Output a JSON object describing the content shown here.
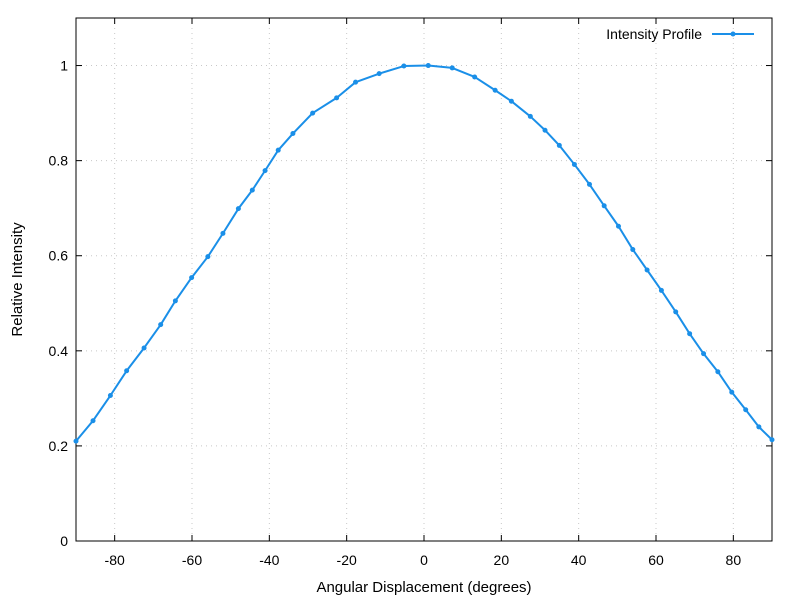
{
  "chart_data": {
    "type": "line",
    "title": "",
    "xlabel": "Angular Displacement (degrees)",
    "ylabel": "Relative Intensity",
    "xlim": [
      -90,
      90
    ],
    "ylim": [
      0,
      1.1
    ],
    "xticks": [
      -80,
      -60,
      -40,
      -20,
      0,
      20,
      40,
      60,
      80
    ],
    "yticks": [
      0,
      0.2,
      0.4,
      0.6,
      0.8,
      1
    ],
    "xtick_labels": [
      "-80",
      "-60",
      "-40",
      "-20",
      "0",
      "20",
      "40",
      "60",
      "80"
    ],
    "ytick_labels": [
      "0",
      "0.2",
      "0.4",
      "0.6",
      "0.8",
      "1"
    ],
    "grid": true,
    "legend_position": "top-right",
    "line_color": "#1a8fe8",
    "series": [
      {
        "name": "Intensity Profile",
        "x": [
          -90.0,
          -85.6,
          -81.1,
          -76.9,
          -72.4,
          -68.1,
          -64.3,
          -60.1,
          -55.9,
          -52.0,
          -48.0,
          -44.4,
          -41.1,
          -37.7,
          -33.9,
          -28.8,
          -22.6,
          -17.7,
          -11.6,
          -5.2,
          1.1,
          7.3,
          13.1,
          18.4,
          22.6,
          27.5,
          31.3,
          35.0,
          38.9,
          42.8,
          46.6,
          50.3,
          54.0,
          57.7,
          61.4,
          65.1,
          68.7,
          72.3,
          76.0,
          79.6,
          83.2,
          86.6,
          90.0
        ],
        "y": [
          0.21,
          0.253,
          0.306,
          0.358,
          0.406,
          0.455,
          0.505,
          0.554,
          0.598,
          0.647,
          0.699,
          0.738,
          0.779,
          0.822,
          0.857,
          0.9,
          0.932,
          0.965,
          0.983,
          0.999,
          1.0,
          0.995,
          0.976,
          0.948,
          0.925,
          0.893,
          0.864,
          0.832,
          0.792,
          0.75,
          0.705,
          0.662,
          0.613,
          0.57,
          0.527,
          0.482,
          0.436,
          0.394,
          0.356,
          0.313,
          0.276,
          0.24,
          0.213
        ]
      }
    ]
  }
}
